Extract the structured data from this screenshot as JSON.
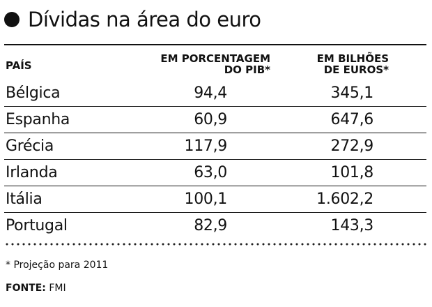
{
  "chart_data": {
    "type": "table",
    "title": "Dívidas na área do euro",
    "columns": [
      {
        "label": "PAÍS"
      },
      {
        "label_lines": [
          "EM PORCENTAGEM",
          "DO PIB*"
        ]
      },
      {
        "label_lines": [
          "EM BILHÕES",
          "DE EUROS*"
        ]
      }
    ],
    "rows": [
      {
        "country": "Bélgica",
        "pib": "94,4",
        "euros": "345,1"
      },
      {
        "country": "Espanha",
        "pib": "60,9",
        "euros": "647,6"
      },
      {
        "country": "Grécia",
        "pib": "117,9",
        "euros": "272,9"
      },
      {
        "country": "Irlanda",
        "pib": "63,0",
        "euros": "101,8"
      },
      {
        "country": "Itália",
        "pib": "100,1",
        "euros": "1.602,2"
      },
      {
        "country": "Portugal",
        "pib": "82,9",
        "euros": "143,3"
      }
    ],
    "footnote": "* Projeção para 2011",
    "source_label": "FONTE:",
    "source_value": "FMI"
  }
}
